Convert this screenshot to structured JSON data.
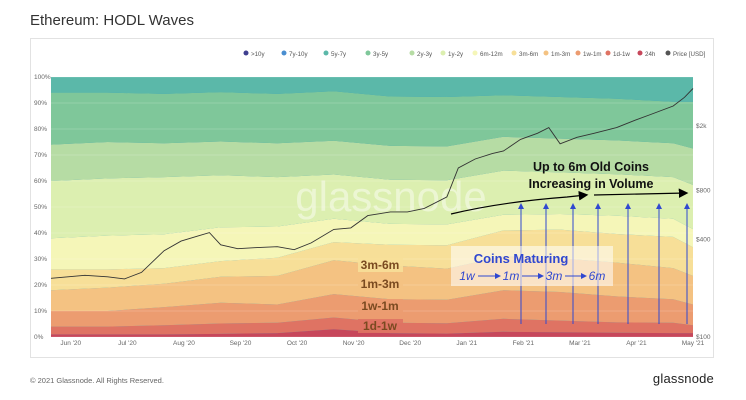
{
  "page": {
    "title": "Ethereum: HODL Waves",
    "footer": "© 2021 Glassnode. All Rights Reserved.",
    "brand": "glassnode",
    "watermark": "glassnode"
  },
  "chart_data": {
    "type": "area",
    "title": "Ethereum: HODL Waves",
    "x_ticks": [
      "Jun '20",
      "Jul '20",
      "Aug '20",
      "Sep '20",
      "Oct '20",
      "Nov '20",
      "Dec '20",
      "Jan '21",
      "Feb '21",
      "Mar '21",
      "Apr '21",
      "May '21"
    ],
    "x_range": [
      0,
      11.35
    ],
    "y_left_ticks": [
      "0%",
      "10%",
      "20%",
      "30%",
      "40%",
      "50%",
      "60%",
      "70%",
      "80%",
      "90%",
      "100%"
    ],
    "y_right_ticks": [
      "$100",
      "$400",
      "$800",
      "$2k"
    ],
    "y_right_log": true,
    "y_right_range": [
      100,
      4000
    ],
    "grid": true,
    "legend_position": "top",
    "legend": [
      {
        "label": ">10y",
        "color": "#3f3f8f"
      },
      {
        "label": "7y-10y",
        "color": "#4a8ed0"
      },
      {
        "label": "5y-7y",
        "color": "#5bb8a9"
      },
      {
        "label": "3y-5y",
        "color": "#7fc79a"
      },
      {
        "label": "2y-3y",
        "color": "#b6dca4"
      },
      {
        "label": "1y-2y",
        "color": "#dcefb0"
      },
      {
        "label": "6m-12m",
        "color": "#f5f6b8"
      },
      {
        "label": "3m-6m",
        "color": "#f7df98"
      },
      {
        "label": "1m-3m",
        "color": "#f4c282"
      },
      {
        "label": "1w-1m",
        "color": "#ec9c70"
      },
      {
        "label": "1d-1w",
        "color": "#df7363"
      },
      {
        "label": "24h",
        "color": "#c7475b"
      },
      {
        "label": "Price [USD]",
        "color": "#555555"
      }
    ],
    "x": [
      0,
      1,
      2,
      3,
      4,
      5,
      6,
      7,
      8,
      9,
      10,
      11,
      11.35
    ],
    "series": [
      {
        "name": "24h",
        "color": "#c7475b",
        "values": [
          1,
          1,
          1,
          1.2,
          1.5,
          3,
          1.5,
          1.3,
          2,
          1.8,
          1.6,
          1.5,
          1.5
        ]
      },
      {
        "name": "1d-1w",
        "color": "#df7363",
        "values": [
          3,
          3,
          3.5,
          4,
          4,
          4.5,
          4,
          4,
          5,
          4.5,
          4,
          4,
          3
        ]
      },
      {
        "name": "1w-1m",
        "color": "#ec9c70",
        "values": [
          6,
          6,
          7,
          8,
          7,
          9,
          9,
          9,
          11,
          11,
          10,
          9,
          8
        ]
      },
      {
        "name": "1m-3m",
        "color": "#f4c282",
        "values": [
          8,
          9,
          9,
          10,
          11,
          13,
          13,
          12,
          13,
          13,
          13,
          12,
          11
        ]
      },
      {
        "name": "3m-6m",
        "color": "#f7df98",
        "values": [
          8,
          7,
          6,
          6,
          7,
          7,
          8,
          9,
          10,
          11,
          11,
          12,
          11
        ]
      },
      {
        "name": "6m-12m",
        "color": "#f5f6b8",
        "values": [
          12,
          13,
          13,
          13,
          12,
          9,
          8,
          8,
          6,
          6,
          7,
          7,
          7
        ]
      },
      {
        "name": "1y-2y",
        "color": "#dcefb0",
        "values": [
          22,
          22,
          22,
          20,
          19,
          17,
          17,
          17,
          17,
          16,
          16,
          16,
          17
        ]
      },
      {
        "name": "2y-3y",
        "color": "#b6dca4",
        "values": [
          14,
          14,
          13,
          13,
          13,
          13,
          13,
          13,
          13,
          13,
          13,
          13,
          14
        ]
      },
      {
        "name": "3y-5y",
        "color": "#7fc79a",
        "values": [
          20,
          19,
          19,
          19,
          19,
          19,
          19,
          19,
          16,
          16,
          16,
          16,
          18
        ]
      },
      {
        "name": "5y-7y",
        "color": "#5bb8a9",
        "values": [
          6,
          6,
          6.5,
          6,
          6.5,
          6.5,
          7.5,
          7.7,
          7,
          7.7,
          8.4,
          9.5,
          9.5
        ]
      }
    ],
    "price": {
      "x": [
        0,
        0.3,
        0.6,
        1,
        1.3,
        1.6,
        2,
        2.3,
        2.6,
        2.8,
        3,
        3.3,
        3.6,
        4,
        4.3,
        4.6,
        5,
        5.3,
        5.6,
        6,
        6.3,
        6.6,
        7,
        7.2,
        7.5,
        7.8,
        8,
        8.3,
        8.6,
        8.8,
        9,
        9.3,
        9.6,
        10,
        10.3,
        10.6,
        11,
        11.2,
        11.35
      ],
      "y": [
        230,
        235,
        240,
        235,
        228,
        250,
        340,
        390,
        420,
        440,
        370,
        350,
        355,
        360,
        345,
        380,
        460,
        470,
        560,
        590,
        590,
        620,
        730,
        1100,
        1250,
        1350,
        1400,
        1650,
        1800,
        1950,
        1550,
        1700,
        1800,
        1950,
        2150,
        2350,
        2650,
        3000,
        3400
      ]
    },
    "annotations": {
      "band_labels": [
        "3m-6m",
        "1m-3m",
        "1w-1m",
        "1d-1w"
      ],
      "header_line1": "Up to 6m Old Coins",
      "header_line2": "Increasing in Volume",
      "maturing_title": "Coins Maturing",
      "maturing_sequence": [
        "1w",
        "1m",
        "3m",
        "6m"
      ]
    }
  }
}
